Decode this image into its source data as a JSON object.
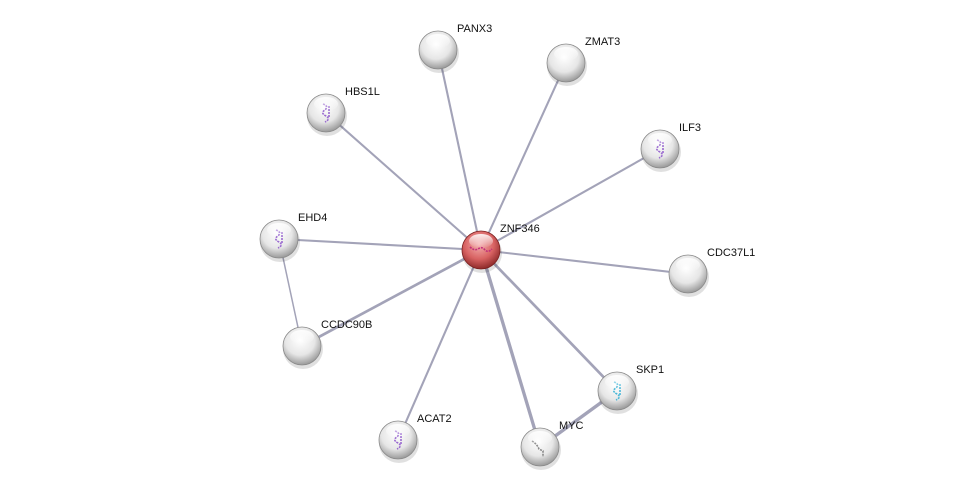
{
  "network": {
    "center": "ZNF346",
    "nodes": [
      {
        "id": "ZNF346",
        "color": "#d45a5a",
        "structure": "magenta"
      },
      {
        "id": "PANX3",
        "color": "#e2e2e2",
        "structure": "none"
      },
      {
        "id": "ZMAT3",
        "color": "#e2e2e2",
        "structure": "none"
      },
      {
        "id": "HBS1L",
        "color": "#e2e2e2",
        "structure": "purple"
      },
      {
        "id": "ILF3",
        "color": "#e2e2e2",
        "structure": "purple"
      },
      {
        "id": "EHD4",
        "color": "#e2e2e2",
        "structure": "purple"
      },
      {
        "id": "CDC37L1",
        "color": "#e2e2e2",
        "structure": "none"
      },
      {
        "id": "CCDC90B",
        "color": "#e2e2e2",
        "structure": "none"
      },
      {
        "id": "SKP1",
        "color": "#e2e2e2",
        "structure": "cyan"
      },
      {
        "id": "ACAT2",
        "color": "#e2e2e2",
        "structure": "purple"
      },
      {
        "id": "MYC",
        "color": "#e2e2e2",
        "structure": "gray"
      }
    ],
    "edges": [
      {
        "from": "ZNF346",
        "to": "PANX3",
        "strength": 2
      },
      {
        "from": "ZNF346",
        "to": "ZMAT3",
        "strength": 2
      },
      {
        "from": "ZNF346",
        "to": "HBS1L",
        "strength": 2
      },
      {
        "from": "ZNF346",
        "to": "ILF3",
        "strength": 2
      },
      {
        "from": "ZNF346",
        "to": "EHD4",
        "strength": 2
      },
      {
        "from": "ZNF346",
        "to": "CDC37L1",
        "strength": 2
      },
      {
        "from": "ZNF346",
        "to": "CCDC90B",
        "strength": 3
      },
      {
        "from": "ZNF346",
        "to": "SKP1",
        "strength": 3
      },
      {
        "from": "ZNF346",
        "to": "ACAT2",
        "strength": 2
      },
      {
        "from": "ZNF346",
        "to": "MYC",
        "strength": 4
      },
      {
        "from": "EHD4",
        "to": "CCDC90B",
        "strength": 1
      },
      {
        "from": "SKP1",
        "to": "MYC",
        "strength": 4
      }
    ],
    "edge_color": "#a3a3b8"
  }
}
